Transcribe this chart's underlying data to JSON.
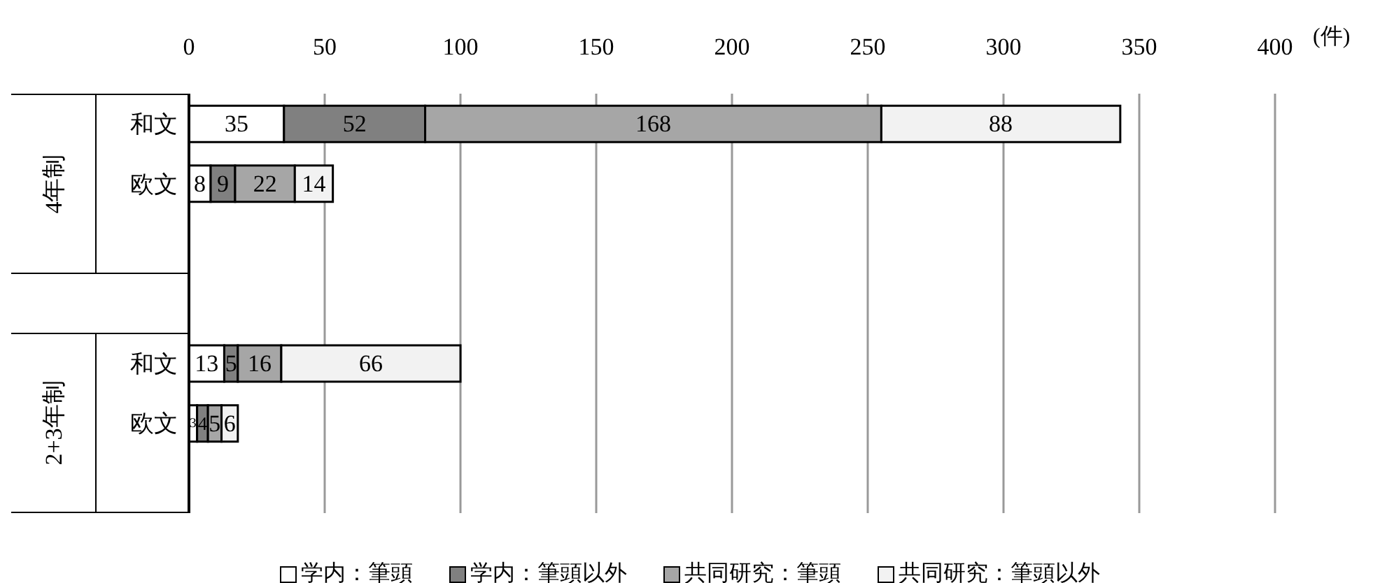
{
  "chart_data": {
    "type": "bar",
    "orientation": "horizontal",
    "stacked": true,
    "xlabel": "(件)",
    "categories": [
      "和文",
      "欧文",
      null,
      null,
      "和文",
      "欧文",
      null
    ],
    "series": [
      {
        "name": "学内：筆頭",
        "color": "#ffffff",
        "values": [
          35,
          8,
          null,
          null,
          13,
          3,
          null
        ]
      },
      {
        "name": "学内：筆頭以外",
        "color": "#808080",
        "values": [
          52,
          9,
          null,
          null,
          5,
          4,
          null
        ]
      },
      {
        "name": "共同研究：筆頭",
        "color": "#a6a6a6",
        "values": [
          168,
          22,
          null,
          null,
          16,
          5,
          null
        ]
      },
      {
        "name": "共同研究：筆頭以外",
        "color": "#f2f2f2",
        "values": [
          88,
          14,
          null,
          null,
          66,
          6,
          null
        ]
      }
    ],
    "annotations": [
      "4年制",
      "2+3年制"
    ],
    "xlim": [
      0,
      400
    ],
    "xticks": [
      0,
      50,
      100,
      150,
      200,
      250,
      300,
      350,
      400
    ],
    "grid": "x",
    "data_labels": true,
    "legend": "bottom"
  }
}
